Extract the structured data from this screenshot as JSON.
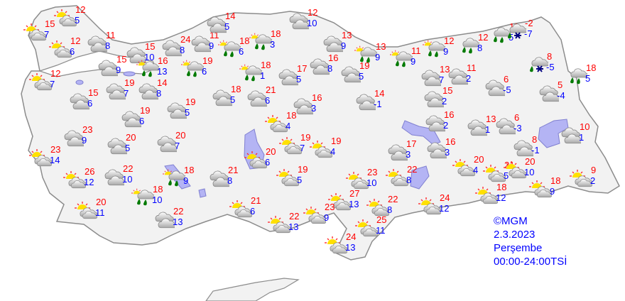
{
  "footer": {
    "copyright": "©MGM",
    "date": "2.3.2023",
    "day": "Perşembe",
    "period": "00:00-24:00TSİ"
  },
  "colors": {
    "high": "#ff0000",
    "low": "#0000ff",
    "land": "#f2f2f2",
    "lake": "#b4b4f4",
    "rain": "#007a00",
    "snow": "#000080"
  },
  "stations": [
    {
      "hi": "12",
      "lo": "5",
      "icon": "partly-cloudy"
    },
    {
      "hi": "15",
      "lo": "7",
      "icon": "partly-cloudy"
    },
    {
      "hi": "11",
      "lo": "8",
      "icon": "cloudy"
    },
    {
      "hi": "12",
      "lo": "6",
      "icon": "partly-cloudy"
    },
    {
      "hi": "15",
      "lo": "10",
      "icon": "cloudy"
    },
    {
      "hi": "15",
      "lo": "9",
      "icon": "cloudy"
    },
    {
      "hi": "12",
      "lo": "7",
      "icon": "partly-cloudy"
    },
    {
      "hi": "24",
      "lo": "8",
      "icon": "cloudy"
    },
    {
      "hi": "11",
      "lo": "9",
      "icon": "cloudy"
    },
    {
      "hi": "16",
      "lo": "13",
      "icon": "sun-cloud-rain"
    },
    {
      "hi": "19",
      "lo": "6",
      "icon": "sun-cloud-rain"
    },
    {
      "hi": "14",
      "lo": "5",
      "icon": "cloudy"
    },
    {
      "hi": "18",
      "lo": "6",
      "icon": "sun-cloud-rain"
    },
    {
      "hi": "18",
      "lo": "3",
      "icon": "sun-cloud-rain"
    },
    {
      "hi": "18",
      "lo": "1",
      "icon": "sun-cloud-rain"
    },
    {
      "hi": "12",
      "lo": "10",
      "icon": "cloudy"
    },
    {
      "hi": "13",
      "lo": "9",
      "icon": "cloudy"
    },
    {
      "hi": "13",
      "lo": "9",
      "icon": "sun-cloud-rain"
    },
    {
      "hi": "11",
      "lo": "9",
      "icon": "sun-cloud-rain"
    },
    {
      "hi": "12",
      "lo": "9",
      "icon": "sun-cloud-rain"
    },
    {
      "hi": "12",
      "lo": "8",
      "icon": "rain"
    },
    {
      "hi": "11",
      "lo": "5",
      "icon": "rain"
    },
    {
      "hi": "-2",
      "lo": "-7",
      "icon": "rain-snow"
    },
    {
      "hi": "8",
      "lo": "-5",
      "icon": "rain-snow"
    },
    {
      "hi": "18",
      "lo": "5",
      "icon": "rain"
    },
    {
      "hi": "16",
      "lo": "8",
      "icon": "cloudy"
    },
    {
      "hi": "17",
      "lo": "5",
      "icon": "cloudy"
    },
    {
      "hi": "19",
      "lo": "5",
      "icon": "cloudy"
    },
    {
      "hi": "13",
      "lo": "7",
      "icon": "cloudy"
    },
    {
      "hi": "11",
      "lo": "2",
      "icon": "cloudy"
    },
    {
      "hi": "6",
      "lo": "-5",
      "icon": "cloudy"
    },
    {
      "hi": "5",
      "lo": "-4",
      "icon": "cloudy"
    },
    {
      "hi": "15",
      "lo": "2",
      "icon": "cloudy"
    },
    {
      "hi": "14",
      "lo": "-1",
      "icon": "cloudy"
    },
    {
      "hi": "16",
      "lo": "3",
      "icon": "cloudy"
    },
    {
      "hi": "21",
      "lo": "6",
      "icon": "cloudy"
    },
    {
      "hi": "18",
      "lo": "5",
      "icon": "cloudy"
    },
    {
      "hi": "19",
      "lo": "7",
      "icon": "cloudy"
    },
    {
      "hi": "14",
      "lo": "8",
      "icon": "cloudy"
    },
    {
      "hi": "15",
      "lo": "6",
      "icon": "cloudy"
    },
    {
      "hi": "19",
      "lo": "5",
      "icon": "cloudy"
    },
    {
      "hi": "19",
      "lo": "6",
      "icon": "cloudy"
    },
    {
      "hi": "18",
      "lo": "4",
      "icon": "partly-cloudy"
    },
    {
      "hi": "16",
      "lo": "2",
      "icon": "cloudy"
    },
    {
      "hi": "13",
      "lo": "1",
      "icon": "cloudy"
    },
    {
      "hi": "6",
      "lo": "-3",
      "icon": "cloudy"
    },
    {
      "hi": "10",
      "lo": "1",
      "icon": "cloudy"
    },
    {
      "hi": "8",
      "lo": "-1",
      "icon": "cloudy"
    },
    {
      "hi": "23",
      "lo": "9",
      "icon": "cloudy"
    },
    {
      "hi": "20",
      "lo": "5",
      "icon": "cloudy"
    },
    {
      "hi": "20",
      "lo": "7",
      "icon": "cloudy"
    },
    {
      "hi": "19",
      "lo": "7",
      "icon": "partly-cloudy"
    },
    {
      "hi": "19",
      "lo": "4",
      "icon": "partly-cloudy"
    },
    {
      "hi": "17",
      "lo": "3",
      "icon": "cloudy"
    },
    {
      "hi": "16",
      "lo": "3",
      "icon": "cloudy"
    },
    {
      "hi": "20",
      "lo": "6",
      "icon": "partly-cloudy"
    },
    {
      "hi": "23",
      "lo": "14",
      "icon": "partly-cloudy"
    },
    {
      "hi": "20",
      "lo": "4",
      "icon": "partly-cloudy"
    },
    {
      "hi": "21",
      "lo": "5",
      "icon": "partly-cloudy"
    },
    {
      "hi": "20",
      "lo": "10",
      "icon": "partly-cloudy"
    },
    {
      "hi": "9",
      "lo": "2",
      "icon": "partly-cloudy"
    },
    {
      "hi": "26",
      "lo": "12",
      "icon": "partly-cloudy"
    },
    {
      "hi": "22",
      "lo": "10",
      "icon": "cloudy"
    },
    {
      "hi": "18",
      "lo": "9",
      "icon": "sun-cloud-rain"
    },
    {
      "hi": "21",
      "lo": "8",
      "icon": "cloudy"
    },
    {
      "hi": "19",
      "lo": "5",
      "icon": "partly-cloudy"
    },
    {
      "hi": "23",
      "lo": "10",
      "icon": "partly-cloudy"
    },
    {
      "hi": "22",
      "lo": "8",
      "icon": "partly-cloudy"
    },
    {
      "hi": "18",
      "lo": "10",
      "icon": "sun-cloud-rain"
    },
    {
      "hi": "18",
      "lo": "12",
      "icon": "partly-cloudy"
    },
    {
      "hi": "18",
      "lo": "9",
      "icon": "partly-cloudy"
    },
    {
      "hi": "20",
      "lo": "11",
      "icon": "partly-cloudy"
    },
    {
      "hi": "27",
      "lo": "13",
      "icon": "partly-cloudy"
    },
    {
      "hi": "22",
      "lo": "8",
      "icon": "partly-cloudy"
    },
    {
      "hi": "24",
      "lo": "12",
      "icon": "partly-cloudy"
    },
    {
      "hi": "21",
      "lo": "6",
      "icon": "partly-cloudy"
    },
    {
      "hi": "22",
      "lo": "13",
      "icon": "cloudy"
    },
    {
      "hi": "22",
      "lo": "13",
      "icon": "partly-cloudy"
    },
    {
      "hi": "23",
      "lo": "9",
      "icon": "partly-cloudy"
    },
    {
      "hi": "25",
      "lo": "11",
      "icon": "partly-cloudy"
    },
    {
      "hi": "24",
      "lo": "13",
      "icon": "partly-cloudy"
    }
  ]
}
